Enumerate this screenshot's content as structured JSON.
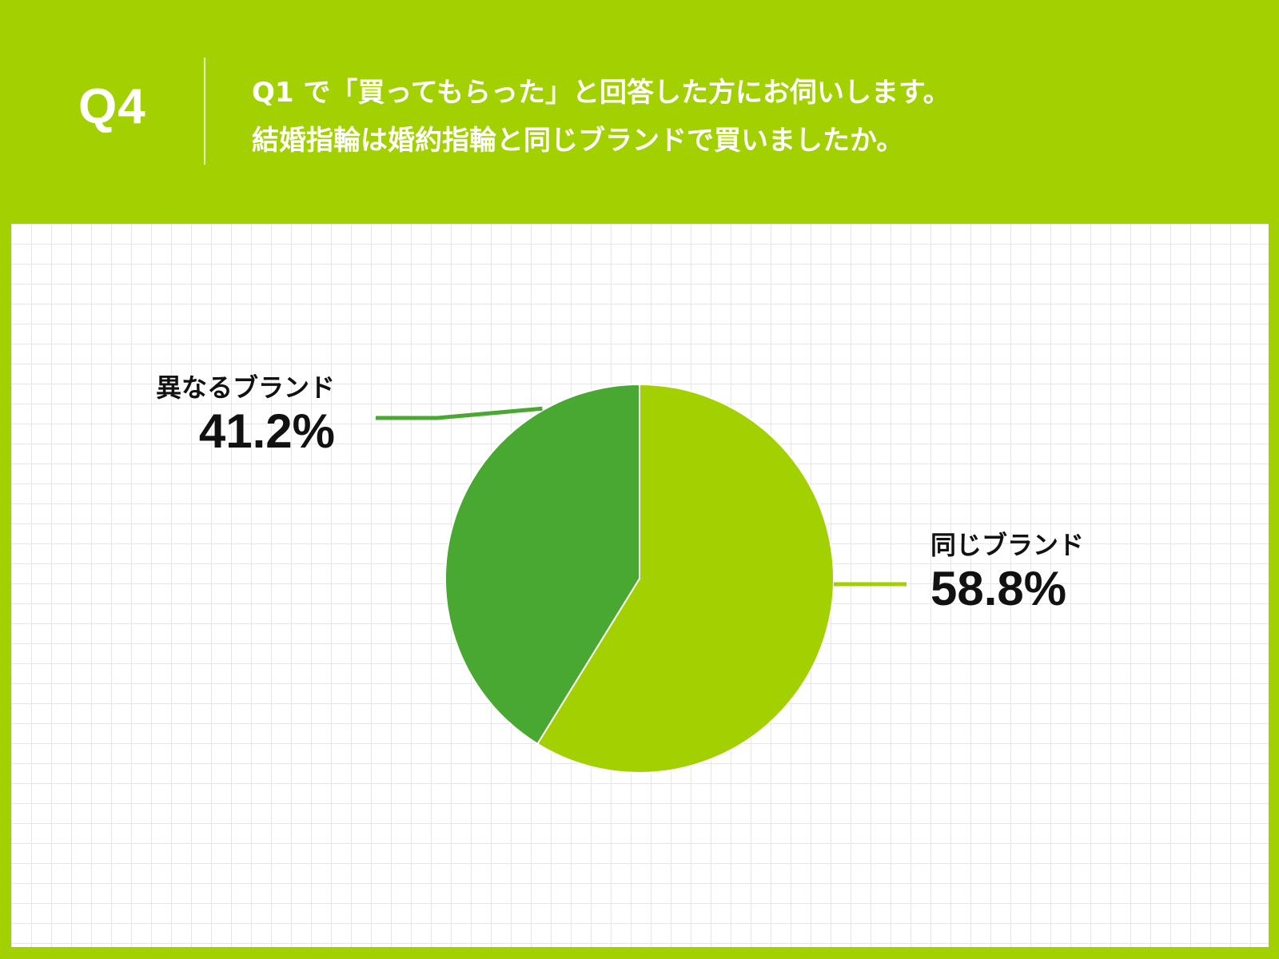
{
  "header": {
    "q_number": "Q4",
    "question_line1": "Q1 で「買ってもらった」と回答した方にお伺いします。",
    "question_line2": "結婚指輪は婚約指輪と同じブランドで買いましたか。"
  },
  "colors": {
    "background": "#a3d000",
    "same_brand": "#a3d000",
    "different_brand": "#48a832",
    "grid_line": "#e6e6e6"
  },
  "chart_data": {
    "type": "pie",
    "title": "",
    "slices": [
      {
        "label": "同じブランド",
        "value": 58.8,
        "display": "58.8%",
        "color": "#a3d000"
      },
      {
        "label": "異なるブランド",
        "value": 41.2,
        "display": "41.2%",
        "color": "#48a832"
      }
    ],
    "start_angle": "12 o'clock",
    "direction": "clockwise",
    "grid": true
  }
}
